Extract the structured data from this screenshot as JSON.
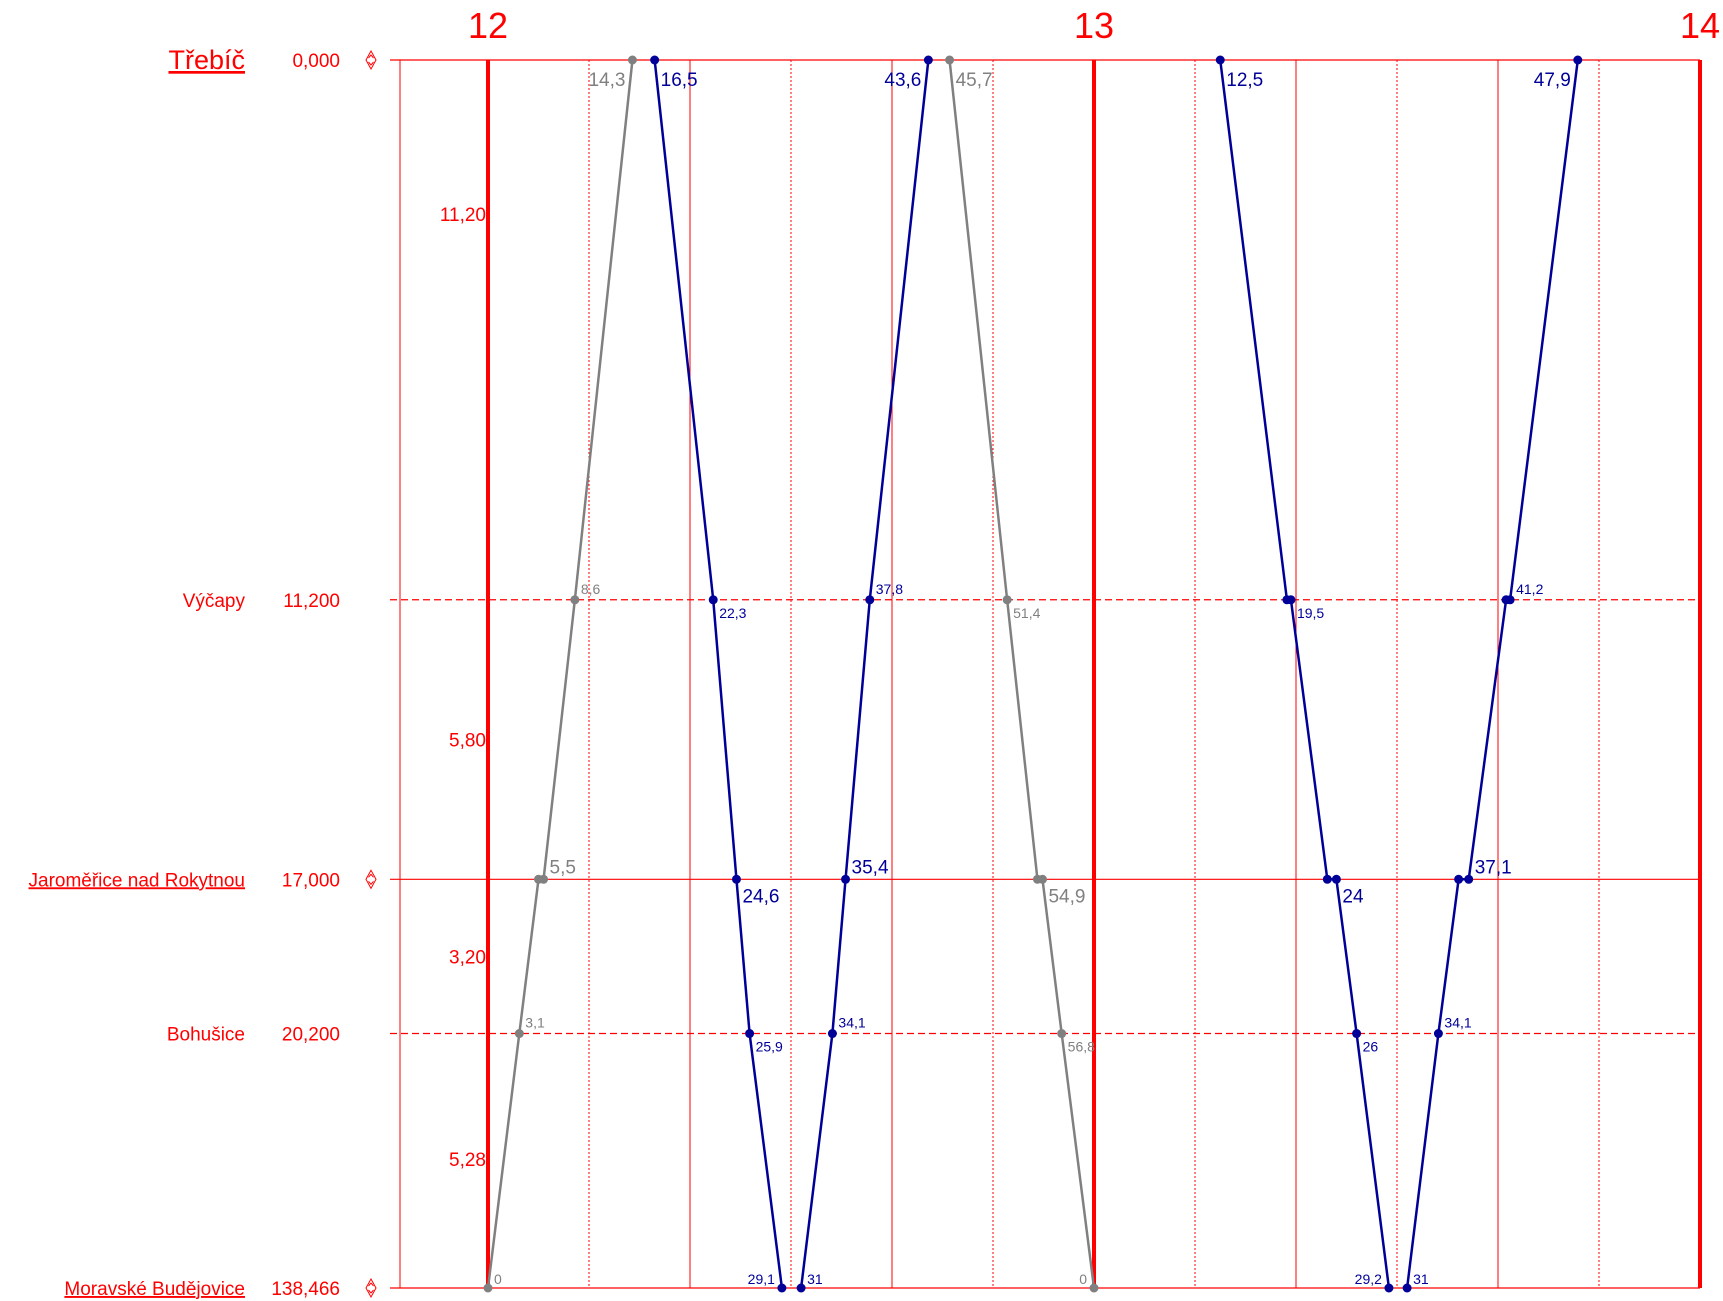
{
  "colors": {
    "grid": "#ff0000",
    "train_blue": "#000099",
    "train_gray": "#808080"
  },
  "chart_data": {
    "type": "line",
    "x_unit": "minute",
    "hours": [
      "12",
      "13",
      "14"
    ],
    "stations": [
      {
        "name": "Třebíč",
        "km": "0,000",
        "pos": 0,
        "style": "main",
        "major": true,
        "marker": true
      },
      {
        "name": "Výčapy",
        "km": "11,200",
        "pos": 11.2,
        "style": "plain",
        "major": false,
        "marker": false
      },
      {
        "name": "Jaroměřice nad Rokytnou",
        "km": "17,000",
        "pos": 17.0,
        "style": "link",
        "major": true,
        "marker": true
      },
      {
        "name": "Bohušice",
        "km": "20,200",
        "pos": 20.2,
        "style": "plain",
        "major": false,
        "marker": false
      },
      {
        "name": "Moravské Budějovice",
        "km": "138,466",
        "pos": 25.48,
        "style": "link",
        "major": true,
        "marker": true
      }
    ],
    "distances": [
      {
        "label": "11,20",
        "pos": 3.2
      },
      {
        "label": "5,80",
        "pos": 14.1
      },
      {
        "label": "3,20",
        "pos": 18.6
      },
      {
        "label": "5,28",
        "pos": 22.8
      }
    ],
    "trains": [
      {
        "color": "gray",
        "direction": "up",
        "points": [
          {
            "t": 0,
            "pos": 25.48,
            "label": "0",
            "size": "small",
            "side": "right"
          },
          {
            "t": 3.1,
            "pos": 20.2,
            "label": "3,1",
            "size": "small",
            "side": "right"
          },
          {
            "t": 5,
            "pos": 17.0,
            "dwell": 5.5,
            "label": "5,5",
            "size": "big",
            "side": "right"
          },
          {
            "t": 8.6,
            "pos": 11.2,
            "label": "8,6",
            "size": "small",
            "side": "right"
          },
          {
            "t": 14.3,
            "pos": 0,
            "label": "14,3",
            "size": "big",
            "side": "left"
          }
        ]
      },
      {
        "color": "blue",
        "direction": "down",
        "points": [
          {
            "t": 16.5,
            "pos": 0,
            "label": "16,5",
            "size": "big",
            "side": "right"
          },
          {
            "t": 22.3,
            "pos": 11.2,
            "label": "22,3",
            "size": "small",
            "side": "right"
          },
          {
            "t": 24.6,
            "pos": 17.0,
            "label": "24,6",
            "size": "big",
            "side": "right"
          },
          {
            "t": 25.9,
            "pos": 20.2,
            "label": "25,9",
            "size": "small",
            "side": "right"
          },
          {
            "t": 29.1,
            "pos": 25.48,
            "label": "29,1",
            "size": "small",
            "side": "left"
          }
        ]
      },
      {
        "color": "blue",
        "direction": "up",
        "points": [
          {
            "t": 31,
            "pos": 25.48,
            "label": "31",
            "size": "small",
            "side": "right"
          },
          {
            "t": 34.1,
            "pos": 20.2,
            "label": "34,1",
            "size": "small",
            "side": "right"
          },
          {
            "t": 35.4,
            "pos": 17.0,
            "label": "35,4",
            "size": "big",
            "side": "right"
          },
          {
            "t": 37.8,
            "pos": 11.2,
            "label": "37,8",
            "size": "small",
            "side": "right"
          },
          {
            "t": 43.6,
            "pos": 0,
            "label": "43,6",
            "size": "big",
            "side": "left"
          }
        ]
      },
      {
        "color": "gray",
        "direction": "down",
        "points": [
          {
            "t": 45.7,
            "pos": 0,
            "label": "45,7",
            "size": "big",
            "side": "right"
          },
          {
            "t": 51.4,
            "pos": 11.2,
            "label": "51,4",
            "size": "small",
            "side": "right"
          },
          {
            "t": 54.4,
            "pos": 17.0,
            "dwell": 54.9,
            "label": "54,9",
            "size": "big",
            "side": "right"
          },
          {
            "t": 56.8,
            "pos": 20.2,
            "label": "56,8",
            "size": "small",
            "side": "right"
          },
          {
            "t": 60,
            "pos": 25.48,
            "label": "0",
            "size": "small",
            "side": "left"
          }
        ]
      },
      {
        "color": "blue",
        "direction": "down",
        "points": [
          {
            "t": 72.5,
            "pos": 0,
            "label": "12,5",
            "size": "big",
            "side": "right"
          },
          {
            "t": 79.1,
            "pos": 11.2,
            "dwell": 79.5,
            "label": "19,5",
            "size": "small",
            "side": "right"
          },
          {
            "t": 83.1,
            "pos": 17.0,
            "dwell": 84,
            "label": "24",
            "size": "big",
            "side": "right"
          },
          {
            "t": 86,
            "pos": 20.2,
            "label": "26",
            "size": "small",
            "side": "right"
          },
          {
            "t": 89.2,
            "pos": 25.48,
            "label": "29,2",
            "size": "small",
            "side": "left"
          }
        ]
      },
      {
        "color": "blue",
        "direction": "up",
        "points": [
          {
            "t": 91,
            "pos": 25.48,
            "label": "31",
            "size": "small",
            "side": "right"
          },
          {
            "t": 94.1,
            "pos": 20.2,
            "label": "34,1",
            "size": "small",
            "side": "right"
          },
          {
            "t": 96.1,
            "pos": 17.0,
            "dwell": 97.1,
            "label": "37,1",
            "size": "big",
            "side": "right"
          },
          {
            "t": 100.8,
            "pos": 11.2,
            "dwell": 101.2,
            "label": "41,2",
            "size": "small",
            "side": "right"
          },
          {
            "t": 107.9,
            "pos": 0,
            "label": "47,9",
            "size": "big",
            "side": "left"
          }
        ]
      }
    ]
  }
}
